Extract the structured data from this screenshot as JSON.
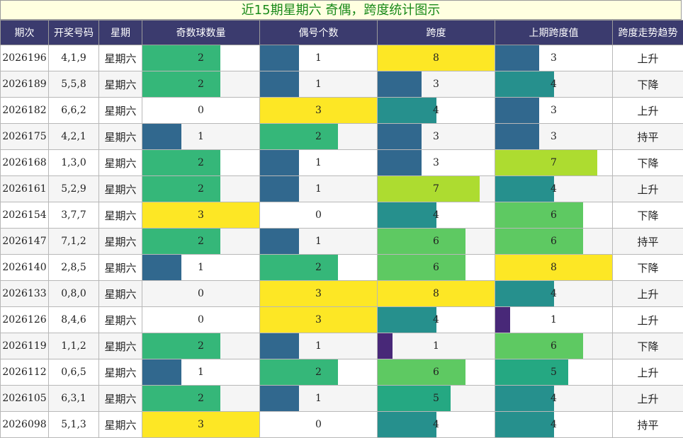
{
  "title": "近15期星期六 奇偶，跨度统计图示",
  "columns": [
    "期次",
    "开奖号码",
    "星期",
    "奇数球数量",
    "偶号个数",
    "跨度",
    "上期跨度值",
    "跨度走势趋势"
  ],
  "chart_data": {
    "type": "table",
    "title": "近15期星期六 奇偶，跨度统计图示",
    "max_values": {
      "odd": 3,
      "even": 3,
      "span": 8,
      "prev_span": 8
    },
    "rows": [
      {
        "issue": "2026196",
        "numbers": "4,1,9",
        "weekday": "星期六",
        "odd": 2,
        "even": 1,
        "span": 8,
        "prev_span": 3,
        "trend": "上升"
      },
      {
        "issue": "2026189",
        "numbers": "5,5,8",
        "weekday": "星期六",
        "odd": 2,
        "even": 1,
        "span": 3,
        "prev_span": 4,
        "trend": "下降"
      },
      {
        "issue": "2026182",
        "numbers": "6,6,2",
        "weekday": "星期六",
        "odd": 0,
        "even": 3,
        "span": 4,
        "prev_span": 3,
        "trend": "上升"
      },
      {
        "issue": "2026175",
        "numbers": "4,2,1",
        "weekday": "星期六",
        "odd": 1,
        "even": 2,
        "span": 3,
        "prev_span": 3,
        "trend": "持平"
      },
      {
        "issue": "2026168",
        "numbers": "1,3,0",
        "weekday": "星期六",
        "odd": 2,
        "even": 1,
        "span": 3,
        "prev_span": 7,
        "trend": "下降"
      },
      {
        "issue": "2026161",
        "numbers": "5,2,9",
        "weekday": "星期六",
        "odd": 2,
        "even": 1,
        "span": 7,
        "prev_span": 4,
        "trend": "上升"
      },
      {
        "issue": "2026154",
        "numbers": "3,7,7",
        "weekday": "星期六",
        "odd": 3,
        "even": 0,
        "span": 4,
        "prev_span": 6,
        "trend": "下降"
      },
      {
        "issue": "2026147",
        "numbers": "7,1,2",
        "weekday": "星期六",
        "odd": 2,
        "even": 1,
        "span": 6,
        "prev_span": 6,
        "trend": "持平"
      },
      {
        "issue": "2026140",
        "numbers": "2,8,5",
        "weekday": "星期六",
        "odd": 1,
        "even": 2,
        "span": 6,
        "prev_span": 8,
        "trend": "下降"
      },
      {
        "issue": "2026133",
        "numbers": "0,8,0",
        "weekday": "星期六",
        "odd": 0,
        "even": 3,
        "span": 8,
        "prev_span": 4,
        "trend": "上升"
      },
      {
        "issue": "2026126",
        "numbers": "8,4,6",
        "weekday": "星期六",
        "odd": 0,
        "even": 3,
        "span": 4,
        "prev_span": 1,
        "trend": "上升"
      },
      {
        "issue": "2026119",
        "numbers": "1,1,2",
        "weekday": "星期六",
        "odd": 2,
        "even": 1,
        "span": 1,
        "prev_span": 6,
        "trend": "下降"
      },
      {
        "issue": "2026112",
        "numbers": "0,6,5",
        "weekday": "星期六",
        "odd": 1,
        "even": 2,
        "span": 6,
        "prev_span": 5,
        "trend": "上升"
      },
      {
        "issue": "2026105",
        "numbers": "6,3,1",
        "weekday": "星期六",
        "odd": 2,
        "even": 1,
        "span": 5,
        "prev_span": 4,
        "trend": "上升"
      },
      {
        "issue": "2026098",
        "numbers": "5,1,3",
        "weekday": "星期六",
        "odd": 3,
        "even": 0,
        "span": 4,
        "prev_span": 4,
        "trend": "持平"
      }
    ]
  },
  "colors": {
    "header_bg": "#3b3b6e",
    "title_bg": "#ffffe0",
    "title_text": "#1a8a1a",
    "scale": {
      "1": "#482878",
      "3": "#31688e",
      "4": "#26908d",
      "5": "#25a882",
      "6": "#5ec962",
      "7": "#addc30",
      "8": "#fde725"
    },
    "oddeven_scale": {
      "1": "#31688e",
      "2": "#35b779",
      "3": "#fde725"
    }
  }
}
